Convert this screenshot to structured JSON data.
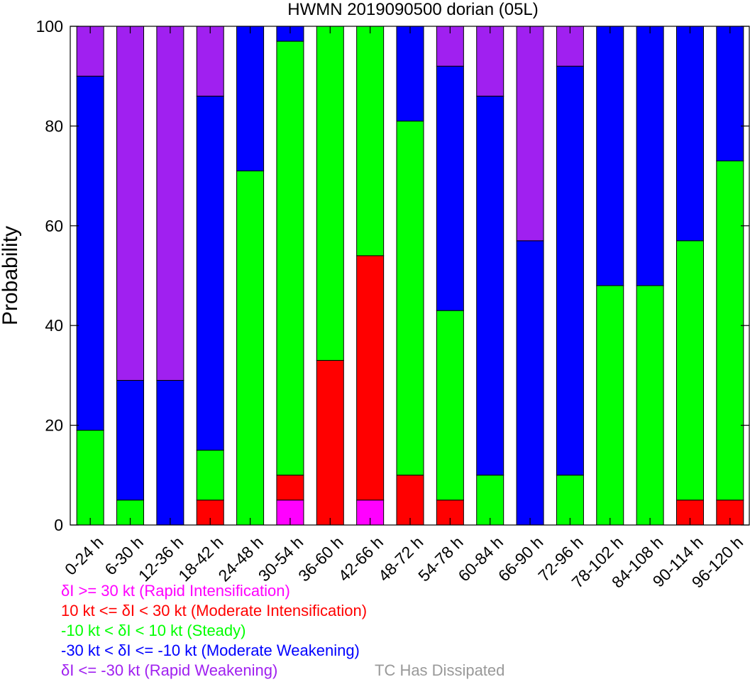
{
  "chart_data": {
    "type": "bar",
    "stacked": true,
    "title": "HWMN 2019090500 dorian (05L)",
    "ylabel": "Probability",
    "xlabel": "",
    "ylim": [
      0,
      100
    ],
    "yticks": [
      0,
      20,
      40,
      60,
      80,
      100
    ],
    "categories": [
      "0-24 h",
      "6-30 h",
      "12-36 h",
      "18-42 h",
      "24-48 h",
      "30-54 h",
      "36-60 h",
      "42-66 h",
      "48-72 h",
      "54-78 h",
      "60-84 h",
      "66-90 h",
      "72-96 h",
      "78-102 h",
      "84-108 h",
      "90-114 h",
      "96-120 h"
    ],
    "series": [
      {
        "name": "δI >= 30 kt (Rapid Intensification)",
        "color": "#ff00ff",
        "values": [
          0,
          0,
          0,
          0,
          0,
          5,
          0,
          5,
          0,
          0,
          0,
          0,
          0,
          0,
          0,
          0,
          0
        ]
      },
      {
        "name": "10 kt <= δI < 30 kt (Moderate Intensification)",
        "color": "#ff0000",
        "values": [
          0,
          0,
          0,
          5,
          0,
          5,
          33,
          49,
          10,
          5,
          0,
          0,
          0,
          0,
          0,
          5,
          5
        ]
      },
      {
        "name": "-10 kt < δI < 10 kt (Steady)",
        "color": "#00ff00",
        "values": [
          19,
          5,
          0,
          10,
          71,
          87,
          67,
          46,
          71,
          38,
          10,
          0,
          10,
          48,
          48,
          52,
          68
        ]
      },
      {
        "name": "-30 kt < δI <= -10 kt (Moderate Weakening)",
        "color": "#0000ff",
        "values": [
          71,
          24,
          29,
          71,
          29,
          3,
          0,
          0,
          19,
          49,
          76,
          57,
          82,
          52,
          52,
          43,
          27
        ]
      },
      {
        "name": "δI <= -30 kt (Rapid Weakening)",
        "color": "#a020f0",
        "values": [
          10,
          71,
          71,
          14,
          0,
          0,
          0,
          0,
          0,
          8,
          14,
          43,
          8,
          0,
          0,
          0,
          0
        ]
      }
    ],
    "legend": [
      {
        "text": "δI >= 30 kt (Rapid Intensification)",
        "color": "#ff00ff"
      },
      {
        "text": "10 kt <= δI < 30 kt (Moderate Intensification)",
        "color": "#ff0000"
      },
      {
        "text": "-10 kt < δI < 10 kt (Steady)",
        "color": "#00ff00"
      },
      {
        "text": "-30 kt < δI <= -10 kt (Moderate Weakening)",
        "color": "#0000ff"
      },
      {
        "text": "δI <= -30 kt (Rapid Weakening)",
        "color": "#a020f0"
      }
    ],
    "dissipated_note": {
      "text": "TC Has Dissipated",
      "color": "#999999"
    },
    "grid": false,
    "legend_position": "bottom-left"
  }
}
